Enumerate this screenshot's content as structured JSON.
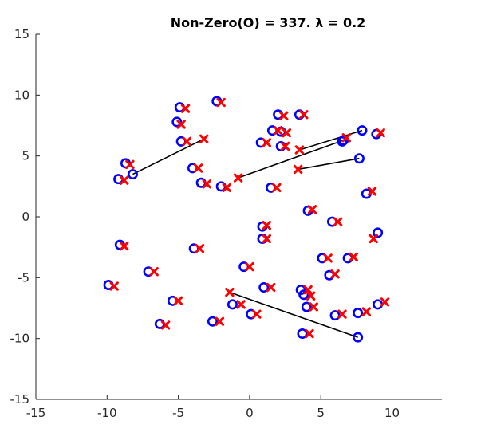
{
  "chart_data": {
    "type": "scatter",
    "title": "Non-Zero(O) = 337. λ = 0.2",
    "xlabel": "",
    "ylabel": "",
    "xlim": [
      -15,
      13.5
    ],
    "ylim": [
      -15,
      15
    ],
    "xticks": [
      -15,
      -10,
      -5,
      0,
      5,
      10
    ],
    "yticks": [
      -15,
      -10,
      -5,
      0,
      5,
      10,
      15
    ],
    "grid": false,
    "colors": {
      "circle": "#0000ff",
      "cross": "#ff0000",
      "line": "#000000"
    },
    "series": [
      {
        "marker": "circle",
        "points": [
          [
            -4.9,
            9.0
          ],
          [
            -5.1,
            7.8
          ],
          [
            -4.8,
            6.2
          ],
          [
            -2.3,
            9.5
          ],
          [
            -4.0,
            4.0
          ],
          [
            -3.4,
            2.8
          ],
          [
            -8.7,
            4.4
          ],
          [
            -8.2,
            3.5
          ],
          [
            -9.2,
            3.1
          ],
          [
            -2.0,
            2.5
          ],
          [
            2.0,
            8.4
          ],
          [
            3.5,
            8.4
          ],
          [
            1.6,
            7.1
          ],
          [
            2.2,
            7.0
          ],
          [
            0.8,
            6.1
          ],
          [
            2.2,
            5.8
          ],
          [
            6.5,
            6.2
          ],
          [
            6.6,
            6.3
          ],
          [
            7.9,
            7.1
          ],
          [
            8.9,
            6.8
          ],
          [
            7.7,
            4.8
          ],
          [
            1.5,
            2.4
          ],
          [
            4.1,
            0.5
          ],
          [
            5.8,
            -0.4
          ],
          [
            8.2,
            1.9
          ],
          [
            9.0,
            -1.3
          ],
          [
            -9.1,
            -2.3
          ],
          [
            -3.9,
            -2.6
          ],
          [
            -7.1,
            -4.5
          ],
          [
            -9.9,
            -5.6
          ],
          [
            -5.4,
            -6.9
          ],
          [
            -6.3,
            -8.8
          ],
          [
            -2.6,
            -8.6
          ],
          [
            -1.2,
            -7.2
          ],
          [
            0.1,
            -8.0
          ],
          [
            0.9,
            -0.8
          ],
          [
            0.9,
            -1.8
          ],
          [
            -0.4,
            -4.1
          ],
          [
            1.0,
            -5.8
          ],
          [
            5.1,
            -3.4
          ],
          [
            5.6,
            -4.8
          ],
          [
            6.9,
            -3.4
          ],
          [
            3.6,
            -6.0
          ],
          [
            3.8,
            -6.4
          ],
          [
            4.0,
            -7.4
          ],
          [
            3.7,
            -9.6
          ],
          [
            6.0,
            -8.1
          ],
          [
            7.6,
            -7.9
          ],
          [
            9.0,
            -7.2
          ],
          [
            7.6,
            -9.9
          ]
        ]
      },
      {
        "marker": "cross",
        "points": [
          [
            -4.5,
            8.9
          ],
          [
            -4.8,
            7.6
          ],
          [
            -4.4,
            6.2
          ],
          [
            -2.0,
            9.4
          ],
          [
            -3.6,
            4.0
          ],
          [
            -3.0,
            2.7
          ],
          [
            -8.4,
            4.3
          ],
          [
            -8.8,
            3.0
          ],
          [
            -1.6,
            2.4
          ],
          [
            -3.2,
            6.4
          ],
          [
            -0.8,
            3.2
          ],
          [
            2.4,
            8.3
          ],
          [
            3.8,
            8.4
          ],
          [
            2.0,
            7.1
          ],
          [
            2.6,
            6.9
          ],
          [
            1.2,
            6.1
          ],
          [
            2.5,
            5.8
          ],
          [
            3.5,
            5.5
          ],
          [
            3.4,
            3.9
          ],
          [
            9.2,
            6.9
          ],
          [
            1.9,
            2.4
          ],
          [
            6.8,
            6.5
          ],
          [
            4.4,
            0.6
          ],
          [
            6.2,
            -0.4
          ],
          [
            8.6,
            2.1
          ],
          [
            8.7,
            -1.8
          ],
          [
            -8.8,
            -2.4
          ],
          [
            -3.5,
            -2.6
          ],
          [
            -6.7,
            -4.5
          ],
          [
            -9.5,
            -5.7
          ],
          [
            -5.0,
            -6.9
          ],
          [
            -5.9,
            -8.9
          ],
          [
            -2.1,
            -8.6
          ],
          [
            -1.4,
            -6.2
          ],
          [
            -0.6,
            -7.2
          ],
          [
            0.5,
            -8.0
          ],
          [
            1.2,
            -0.7
          ],
          [
            1.2,
            -1.8
          ],
          [
            0.0,
            -4.1
          ],
          [
            1.5,
            -5.8
          ],
          [
            5.5,
            -3.4
          ],
          [
            6.0,
            -4.7
          ],
          [
            7.3,
            -3.3
          ],
          [
            4.1,
            -6.0
          ],
          [
            4.3,
            -6.5
          ],
          [
            4.5,
            -7.4
          ],
          [
            4.2,
            -9.6
          ],
          [
            6.5,
            -8.0
          ],
          [
            8.2,
            -7.8
          ],
          [
            9.5,
            -7.0
          ]
        ]
      }
    ],
    "segments": [
      [
        [
          -8.2,
          3.5
        ],
        [
          -3.2,
          6.4
        ]
      ],
      [
        [
          -0.8,
          3.2
        ],
        [
          6.6,
          6.3
        ]
      ],
      [
        [
          3.5,
          5.5
        ],
        [
          7.9,
          7.1
        ]
      ],
      [
        [
          3.4,
          3.9
        ],
        [
          7.7,
          4.8
        ]
      ],
      [
        [
          -1.4,
          -6.2
        ],
        [
          7.6,
          -9.9
        ]
      ]
    ]
  }
}
